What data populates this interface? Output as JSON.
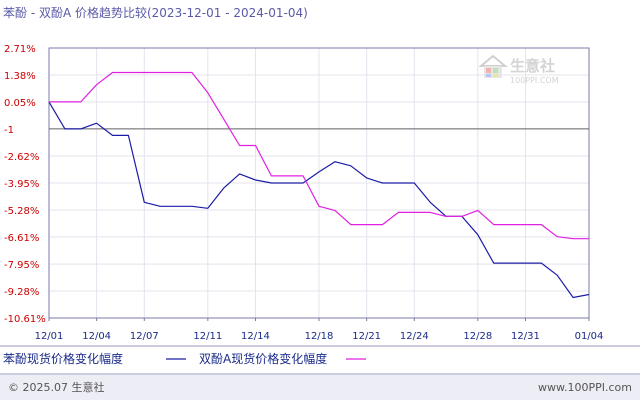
{
  "chart_data": {
    "type": "line",
    "title": "苯酚 - 双酚A 价格趋势比较(2023-12-01 - 2024-01-04)",
    "ylim": [
      -10.61,
      2.71
    ],
    "yticks": [
      "2.71%",
      "1.38%",
      "0.05%",
      "-1",
      "-2.62%",
      "-3.95%",
      "-5.28%",
      "-6.61%",
      "-7.95%",
      "-9.28%",
      "-10.61%"
    ],
    "ytick_values": [
      2.71,
      1.38,
      0.05,
      -1.28,
      -2.62,
      -3.95,
      -5.28,
      -6.61,
      -7.95,
      -9.28,
      -10.61
    ],
    "xlim": [
      0,
      34
    ],
    "xticks": [
      "12/01",
      "12/04",
      "12/07",
      "12/11",
      "12/14",
      "12/18",
      "12/21",
      "12/24",
      "12/28",
      "12/31",
      "01/04"
    ],
    "xtick_positions": [
      0,
      3,
      6,
      10,
      13,
      17,
      20,
      23,
      27,
      30,
      34
    ],
    "grid": true,
    "reference_line": -1.28,
    "series": [
      {
        "name": "苯酚现货价格变化幅度",
        "color": "#1c1ca8",
        "x": [
          0,
          1,
          2,
          3,
          4,
          5,
          6,
          7,
          8,
          9,
          10,
          11,
          12,
          13,
          14,
          15,
          16,
          17,
          18,
          19,
          20,
          21,
          22,
          23,
          24,
          25,
          26,
          27,
          28,
          29,
          30,
          31,
          32,
          33,
          34
        ],
        "values": [
          0.05,
          -1.28,
          -1.28,
          -1.0,
          -1.6,
          -1.6,
          -4.9,
          -5.1,
          -5.1,
          -5.1,
          -5.2,
          -4.2,
          -3.5,
          -3.8,
          -3.95,
          -3.95,
          -3.95,
          -3.4,
          -2.9,
          -3.1,
          -3.7,
          -3.95,
          -3.95,
          -3.95,
          -4.9,
          -5.6,
          -5.6,
          -6.5,
          -7.9,
          -7.9,
          -7.9,
          -7.9,
          -8.5,
          -9.6,
          -9.45
        ]
      },
      {
        "name": "双酚A现货价格变化幅度",
        "color": "#e020e0",
        "x": [
          0,
          1,
          2,
          3,
          4,
          5,
          6,
          7,
          8,
          9,
          10,
          11,
          12,
          13,
          14,
          15,
          16,
          17,
          18,
          19,
          20,
          21,
          22,
          23,
          24,
          25,
          26,
          27,
          28,
          29,
          30,
          31,
          32,
          33,
          34
        ],
        "values": [
          0.05,
          0.05,
          0.05,
          0.9,
          1.5,
          1.5,
          1.5,
          1.5,
          1.5,
          1.5,
          0.5,
          -0.8,
          -2.1,
          -2.1,
          -3.6,
          -3.6,
          -3.6,
          -5.1,
          -5.3,
          -6.0,
          -6.0,
          -6.0,
          -5.4,
          -5.4,
          -5.4,
          -5.6,
          -5.6,
          -5.3,
          -6.0,
          -6.0,
          -6.0,
          -6.0,
          -6.6,
          -6.7,
          -6.7
        ]
      }
    ]
  },
  "legend": [
    {
      "label": "苯酚现货价格变化幅度",
      "color": "#1c1ca8"
    },
    {
      "label": "双酚A现货价格变化幅度",
      "color": "#e020e0"
    }
  ],
  "watermark": {
    "brand": "生意社",
    "url": "100PPI.COM"
  },
  "footer": {
    "left": "© 2025.07 生意社",
    "right": "www.100PPI.com"
  }
}
